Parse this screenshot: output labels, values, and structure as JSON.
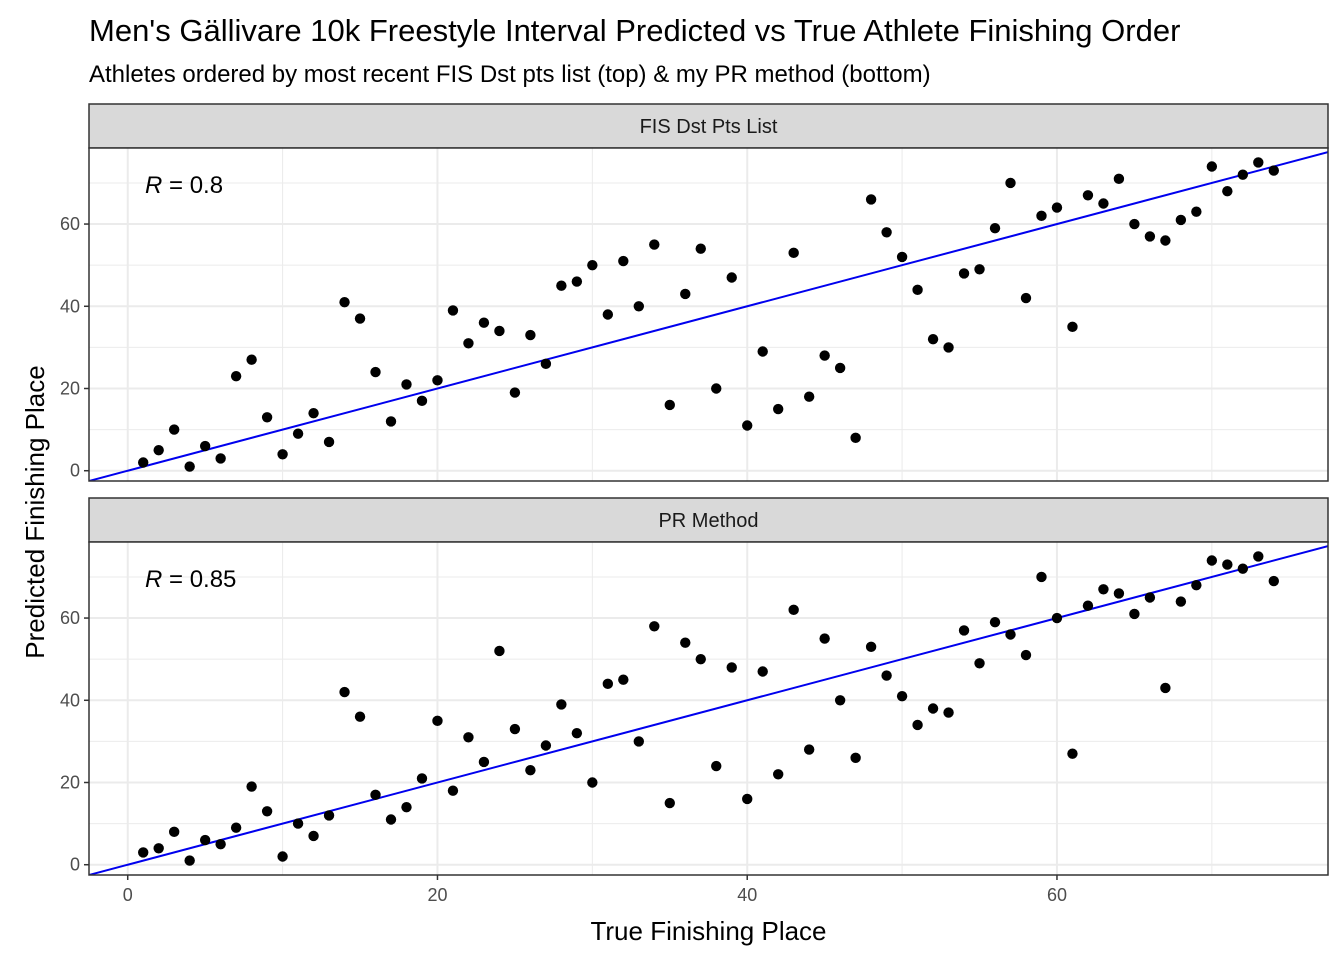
{
  "chart_data": {
    "type": "scatter",
    "title": "Men's Gällivare 10k Freestyle Interval Predicted vs True Athlete Finishing Order",
    "subtitle": "Athletes ordered by most recent FIS Dst pts list (top) & my PR method (bottom)",
    "xlabel": "True Finishing Place",
    "ylabel": "Predicted Finishing Place",
    "xlim": [
      -2.5,
      77.5
    ],
    "ylim": [
      -2.5,
      78.5
    ],
    "x_ticks": [
      0,
      20,
      40,
      60
    ],
    "y_ticks": [
      0,
      20,
      40,
      60
    ],
    "grid": true,
    "colors": {
      "points": "#000000",
      "fit_line": "#0000ee",
      "strip_fill": "#d9d9d9",
      "grid": "#ebebeb"
    },
    "panels": [
      {
        "strip_label": "FIS Dst Pts List",
        "r_symbol": "R",
        "r_value": " = 0.8",
        "fit_line": {
          "intercept": 0,
          "slope": 1
        },
        "points": [
          [
            1,
            2
          ],
          [
            2,
            5
          ],
          [
            3,
            10
          ],
          [
            4,
            1
          ],
          [
            5,
            6
          ],
          [
            6,
            3
          ],
          [
            7,
            23
          ],
          [
            8,
            27
          ],
          [
            9,
            13
          ],
          [
            10,
            4
          ],
          [
            11,
            9
          ],
          [
            12,
            14
          ],
          [
            13,
            7
          ],
          [
            14,
            41
          ],
          [
            15,
            37
          ],
          [
            16,
            24
          ],
          [
            17,
            12
          ],
          [
            18,
            21
          ],
          [
            19,
            17
          ],
          [
            20,
            22
          ],
          [
            21,
            39
          ],
          [
            22,
            31
          ],
          [
            23,
            36
          ],
          [
            24,
            34
          ],
          [
            25,
            19
          ],
          [
            26,
            33
          ],
          [
            27,
            26
          ],
          [
            28,
            45
          ],
          [
            29,
            46
          ],
          [
            30,
            50
          ],
          [
            31,
            38
          ],
          [
            32,
            51
          ],
          [
            33,
            40
          ],
          [
            34,
            55
          ],
          [
            35,
            16
          ],
          [
            36,
            43
          ],
          [
            37,
            54
          ],
          [
            38,
            20
          ],
          [
            39,
            47
          ],
          [
            40,
            11
          ],
          [
            41,
            29
          ],
          [
            42,
            15
          ],
          [
            43,
            53
          ],
          [
            44,
            18
          ],
          [
            45,
            28
          ],
          [
            46,
            25
          ],
          [
            47,
            8
          ],
          [
            48,
            66
          ],
          [
            49,
            58
          ],
          [
            50,
            52
          ],
          [
            51,
            44
          ],
          [
            52,
            32
          ],
          [
            53,
            30
          ],
          [
            54,
            48
          ],
          [
            55,
            49
          ],
          [
            56,
            59
          ],
          [
            57,
            70
          ],
          [
            58,
            42
          ],
          [
            59,
            62
          ],
          [
            60,
            64
          ],
          [
            61,
            35
          ],
          [
            62,
            67
          ],
          [
            63,
            65
          ],
          [
            64,
            71
          ],
          [
            65,
            60
          ],
          [
            66,
            57
          ],
          [
            67,
            56
          ],
          [
            68,
            61
          ],
          [
            69,
            63
          ],
          [
            70,
            74
          ],
          [
            71,
            68
          ],
          [
            72,
            72
          ],
          [
            73,
            75
          ],
          [
            74,
            73
          ]
        ]
      },
      {
        "strip_label": "PR Method",
        "r_symbol": "R",
        "r_value": " = 0.85",
        "fit_line": {
          "intercept": 0,
          "slope": 1
        },
        "points": [
          [
            1,
            3
          ],
          [
            2,
            4
          ],
          [
            3,
            8
          ],
          [
            4,
            1
          ],
          [
            5,
            6
          ],
          [
            6,
            5
          ],
          [
            7,
            9
          ],
          [
            8,
            19
          ],
          [
            9,
            13
          ],
          [
            10,
            2
          ],
          [
            11,
            10
          ],
          [
            12,
            7
          ],
          [
            13,
            12
          ],
          [
            14,
            42
          ],
          [
            15,
            36
          ],
          [
            16,
            17
          ],
          [
            17,
            11
          ],
          [
            18,
            14
          ],
          [
            19,
            21
          ],
          [
            20,
            35
          ],
          [
            21,
            18
          ],
          [
            22,
            31
          ],
          [
            23,
            25
          ],
          [
            24,
            52
          ],
          [
            25,
            33
          ],
          [
            26,
            23
          ],
          [
            27,
            29
          ],
          [
            28,
            39
          ],
          [
            29,
            32
          ],
          [
            30,
            20
          ],
          [
            31,
            44
          ],
          [
            32,
            45
          ],
          [
            33,
            30
          ],
          [
            34,
            58
          ],
          [
            35,
            15
          ],
          [
            36,
            54
          ],
          [
            37,
            50
          ],
          [
            38,
            24
          ],
          [
            39,
            48
          ],
          [
            40,
            16
          ],
          [
            41,
            47
          ],
          [
            42,
            22
          ],
          [
            43,
            62
          ],
          [
            44,
            28
          ],
          [
            45,
            55
          ],
          [
            46,
            40
          ],
          [
            47,
            26
          ],
          [
            48,
            53
          ],
          [
            49,
            46
          ],
          [
            50,
            41
          ],
          [
            51,
            34
          ],
          [
            52,
            38
          ],
          [
            53,
            37
          ],
          [
            54,
            57
          ],
          [
            55,
            49
          ],
          [
            56,
            59
          ],
          [
            57,
            56
          ],
          [
            58,
            51
          ],
          [
            59,
            70
          ],
          [
            60,
            60
          ],
          [
            61,
            27
          ],
          [
            62,
            63
          ],
          [
            63,
            67
          ],
          [
            64,
            66
          ],
          [
            65,
            61
          ],
          [
            66,
            65
          ],
          [
            67,
            43
          ],
          [
            68,
            64
          ],
          [
            69,
            68
          ],
          [
            70,
            74
          ],
          [
            71,
            73
          ],
          [
            72,
            72
          ],
          [
            73,
            75
          ],
          [
            74,
            69
          ]
        ]
      }
    ]
  }
}
